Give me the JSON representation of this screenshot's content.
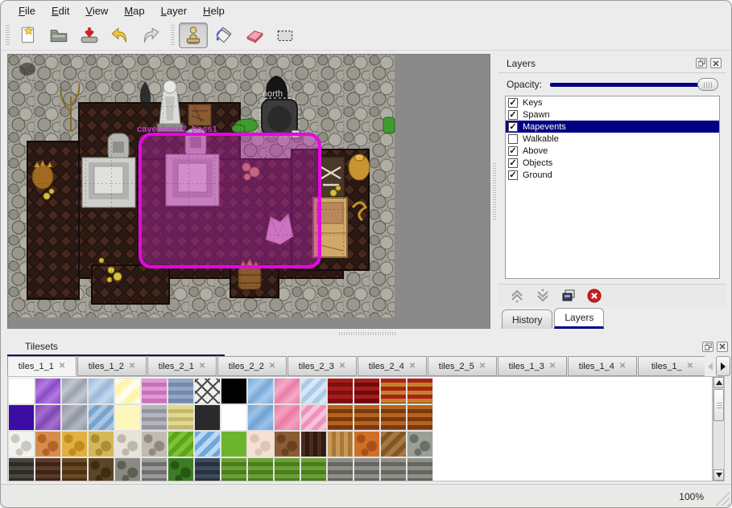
{
  "menu": {
    "items": [
      "File",
      "Edit",
      "View",
      "Map",
      "Layer",
      "Help"
    ]
  },
  "toolbar": {
    "buttons": [
      {
        "icon": "new-file-icon"
      },
      {
        "icon": "open-folder-icon"
      },
      {
        "icon": "save-import-icon"
      },
      {
        "icon": "undo-icon"
      },
      {
        "icon": "redo-icon"
      },
      {
        "icon": "stamp-tool-icon",
        "active": true
      },
      {
        "icon": "fill-tool-icon"
      },
      {
        "icon": "eraser-tool-icon"
      },
      {
        "icon": "select-tool-icon"
      }
    ]
  },
  "map_view": {
    "labels": {
      "boss_event": "cavesnake2_boss1",
      "exit_north": "north"
    },
    "selection_color": "#e607e6",
    "objects": [
      "statue",
      "shadow-creature",
      "sign",
      "cave-entrance",
      "gravestone-gray",
      "gravestone-pink",
      "altar-gray",
      "altar-pink",
      "crystal",
      "mushrooms",
      "urn",
      "bones-crate",
      "wood-crate",
      "gold-jar",
      "barrel",
      "plants"
    ]
  },
  "layers_panel": {
    "title": "Layers",
    "opacity_label": "Opacity:",
    "opacity_percent": 100,
    "layers": [
      {
        "label": "Keys",
        "checked": true,
        "selected": false
      },
      {
        "label": "Spawn",
        "checked": true,
        "selected": false
      },
      {
        "label": "Mapevents",
        "checked": true,
        "selected": true
      },
      {
        "label": "Walkable",
        "checked": false,
        "selected": false
      },
      {
        "label": "Above",
        "checked": true,
        "selected": false
      },
      {
        "label": "Objects",
        "checked": true,
        "selected": false
      },
      {
        "label": "Ground",
        "checked": true,
        "selected": false
      }
    ],
    "buttons": [
      {
        "icon": "raise-layer-icon"
      },
      {
        "icon": "lower-layer-icon"
      },
      {
        "icon": "duplicate-layer-icon"
      },
      {
        "icon": "delete-layer-icon"
      }
    ],
    "tabs": [
      {
        "label": "History",
        "active": false
      },
      {
        "label": "Layers",
        "active": true
      }
    ],
    "selection_color": "#000080"
  },
  "tilesets_panel": {
    "title": "Tilesets",
    "tabs": [
      {
        "label": "tiles_1_1",
        "active": true
      },
      {
        "label": "tiles_1_2",
        "active": false
      },
      {
        "label": "tiles_2_1",
        "active": false
      },
      {
        "label": "tiles_2_2",
        "active": false
      },
      {
        "label": "tiles_2_3",
        "active": false
      },
      {
        "label": "tiles_2_4",
        "active": false
      },
      {
        "label": "tiles_2_5",
        "active": false
      },
      {
        "label": "tiles_1_3",
        "active": false
      },
      {
        "label": "tiles_1_4",
        "active": false
      },
      {
        "label": "tiles_1_",
        "active": false
      }
    ],
    "palette": {
      "cols": 16,
      "tiles": [
        {
          "p": "solid",
          "a": "#ffffff",
          "b": "#ffffff"
        },
        {
          "p": "crystal",
          "a": "#b478e0",
          "b": "#8a4cc8"
        },
        {
          "p": "crystal",
          "a": "#c2c6ce",
          "b": "#9aa0ae"
        },
        {
          "p": "crystal",
          "a": "#c6d9ec",
          "b": "#9ab8d8"
        },
        {
          "p": "crystal",
          "a": "#fdf3a0",
          "b": "#ffffff"
        },
        {
          "p": "hstripes",
          "a": "#e099d6",
          "b": "#c870b8"
        },
        {
          "p": "hstripes",
          "a": "#93a7c4",
          "b": "#7388ac"
        },
        {
          "p": "lattice",
          "a": "#efefef",
          "b": "#4a4a4a"
        },
        {
          "p": "solid",
          "a": "#000000",
          "b": "#000000"
        },
        {
          "p": "crystal",
          "a": "#a8cbec",
          "b": "#78a8d8"
        },
        {
          "p": "crystal",
          "a": "#f4abc8",
          "b": "#e87ca8"
        },
        {
          "p": "diag",
          "a": "#d6e8f6",
          "b": "#aacce8"
        },
        {
          "p": "hstripes",
          "a": "#a81c1c",
          "b": "#7c1010"
        },
        {
          "p": "hstripes",
          "a": "#a81c1c",
          "b": "#6e0c0c"
        },
        {
          "p": "hstripes",
          "a": "#ac2018",
          "b": "#c08428"
        },
        {
          "p": "hstripes",
          "a": "#ac2018",
          "b": "#c08428"
        },
        {
          "p": "solid",
          "a": "#3c0ca4",
          "b": "#3c0ca4"
        },
        {
          "p": "crystal",
          "a": "#a86cd4",
          "b": "#7c48b0"
        },
        {
          "p": "crystal",
          "a": "#b4b8c2",
          "b": "#8e94a4"
        },
        {
          "p": "diag",
          "a": "#a8c4e4",
          "b": "#7aa4cc"
        },
        {
          "p": "solid",
          "a": "#fdf7bc",
          "b": "#fdf7bc"
        },
        {
          "p": "hstripes",
          "a": "#b4b4bc",
          "b": "#94949c"
        },
        {
          "p": "hstripes",
          "a": "#e4d88c",
          "b": "#c4b86c"
        },
        {
          "p": "solid",
          "a": "#2a2a2a",
          "b": "#2a2a2a"
        },
        {
          "p": "solid",
          "a": "#ffffff",
          "b": "#ffffff"
        },
        {
          "p": "crystal",
          "a": "#9cc2e8",
          "b": "#6ea2d4"
        },
        {
          "p": "crystal",
          "a": "#f4a0c0",
          "b": "#ec7aa4"
        },
        {
          "p": "diag",
          "a": "#f6c2dc",
          "b": "#ee92bc"
        },
        {
          "p": "hstripes",
          "a": "#b4641c",
          "b": "#7c3810"
        },
        {
          "p": "hstripes",
          "a": "#b4641c",
          "b": "#7c3810"
        },
        {
          "p": "hstripes",
          "a": "#b4641c",
          "b": "#7c3810"
        },
        {
          "p": "hstripes",
          "a": "#b4641c",
          "b": "#7c3810"
        },
        {
          "p": "stones",
          "a": "#f2f2ee",
          "b": "#c8c8c0"
        },
        {
          "p": "stones",
          "a": "#d88c4c",
          "b": "#b06428"
        },
        {
          "p": "stones",
          "a": "#e0b040",
          "b": "#c08c20"
        },
        {
          "p": "stones",
          "a": "#d4b858",
          "b": "#ac8c34"
        },
        {
          "p": "stones",
          "a": "#e8e4da",
          "b": "#bcb8ac"
        },
        {
          "p": "stones",
          "a": "#c0bcb4",
          "b": "#8e8a80"
        },
        {
          "p": "diag",
          "a": "#7cc434",
          "b": "#5ca41c"
        },
        {
          "p": "diag",
          "a": "#6aa8e0",
          "b": "#bcd8f0"
        },
        {
          "p": "solid",
          "a": "#6cb42c",
          "b": "#6cb42c"
        },
        {
          "p": "stones",
          "a": "#f4e0d4",
          "b": "#e0c4b4"
        },
        {
          "p": "stones",
          "a": "#8a5c34",
          "b": "#6a4020"
        },
        {
          "p": "vstripes",
          "a": "#4a2c1c",
          "b": "#2e1a10"
        },
        {
          "p": "vstripes",
          "a": "#c89858",
          "b": "#a87838"
        },
        {
          "p": "stones",
          "a": "#d07028",
          "b": "#a85018"
        },
        {
          "p": "diag",
          "a": "#a87840",
          "b": "#805828"
        },
        {
          "p": "stones",
          "a": "#9aa098",
          "b": "#6a7068"
        },
        {
          "p": "hstripes",
          "a": "#4a4640",
          "b": "#2e2a26"
        },
        {
          "p": "hstripes",
          "a": "#5a3a2a",
          "b": "#3e2418"
        },
        {
          "p": "hstripes",
          "a": "#6a4a24",
          "b": "#4a3014"
        },
        {
          "p": "stones",
          "a": "#5c4424",
          "b": "#3c2c12"
        },
        {
          "p": "stones",
          "a": "#8a8a82",
          "b": "#5e5e56"
        },
        {
          "p": "hstripes",
          "a": "#9a9a9a",
          "b": "#6e6e6e"
        },
        {
          "p": "stones",
          "a": "#3c7c24",
          "b": "#275714"
        },
        {
          "p": "hstripes",
          "a": "#3e4a5e",
          "b": "#28323e"
        },
        {
          "p": "hstripes",
          "a": "#6aa034",
          "b": "#4a7c20"
        },
        {
          "p": "hstripes",
          "a": "#6aa034",
          "b": "#4a7c20"
        },
        {
          "p": "hstripes",
          "a": "#6aa034",
          "b": "#4a7c20"
        },
        {
          "p": "hstripes",
          "a": "#6aa034",
          "b": "#4a7c20"
        },
        {
          "p": "hstripes",
          "a": "#8e8e8a",
          "b": "#66665f"
        },
        {
          "p": "hstripes",
          "a": "#8e8e8a",
          "b": "#66665f"
        },
        {
          "p": "hstripes",
          "a": "#8e8e8a",
          "b": "#66665f"
        },
        {
          "p": "hstripes",
          "a": "#8e8e8a",
          "b": "#66665f"
        }
      ]
    }
  },
  "status_bar": {
    "zoom": "100%"
  }
}
